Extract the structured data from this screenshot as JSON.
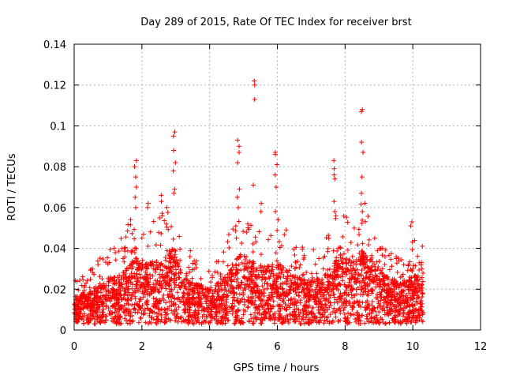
{
  "chart_data": {
    "type": "scatter",
    "title": "Day 289 of 2015, Rate Of TEC Index for receiver brst",
    "xlabel": "GPS time / hours",
    "ylabel": "ROTI / TECUs",
    "xlim": [
      0,
      12
    ],
    "ylim": [
      0,
      0.14
    ],
    "xticks": [
      0,
      2,
      4,
      6,
      8,
      10,
      12
    ],
    "xtick_labels": [
      "0",
      "2",
      "4",
      "6",
      "8",
      "10",
      "12"
    ],
    "yticks": [
      0,
      0.02,
      0.04,
      0.06,
      0.08,
      0.1,
      0.12,
      0.14
    ],
    "ytick_labels": [
      "0",
      "0.02",
      "0.04",
      "0.06",
      "0.08",
      "0.1",
      "0.12",
      "0.14"
    ],
    "grid": true,
    "marker": "plus",
    "color": "#ff0000",
    "data_x_range": [
      0,
      10.3
    ],
    "series": [
      {
        "name": "ROTI",
        "envelope": {
          "x": [
            0.0,
            0.5,
            1.0,
            1.5,
            1.8,
            2.0,
            2.5,
            2.9,
            3.2,
            3.6,
            4.0,
            4.5,
            4.9,
            5.3,
            5.6,
            6.0,
            6.5,
            7.0,
            7.4,
            7.8,
            8.2,
            8.5,
            8.8,
            9.2,
            9.6,
            10.0,
            10.3
          ],
          "typical": [
            0.012,
            0.015,
            0.018,
            0.022,
            0.028,
            0.025,
            0.025,
            0.03,
            0.02,
            0.017,
            0.016,
            0.02,
            0.028,
            0.025,
            0.023,
            0.025,
            0.02,
            0.018,
            0.02,
            0.028,
            0.025,
            0.03,
            0.025,
            0.02,
            0.017,
            0.02,
            0.02
          ],
          "max": [
            0.025,
            0.03,
            0.04,
            0.05,
            0.083,
            0.062,
            0.066,
            0.097,
            0.05,
            0.042,
            0.04,
            0.05,
            0.093,
            0.122,
            0.062,
            0.087,
            0.05,
            0.045,
            0.05,
            0.083,
            0.06,
            0.108,
            0.05,
            0.04,
            0.035,
            0.053,
            0.044
          ]
        },
        "peaks": [
          {
            "x": 1.8,
            "values": [
              0.083,
              0.08,
              0.075,
              0.07,
              0.065,
              0.06
            ]
          },
          {
            "x": 2.2,
            "values": [
              0.062,
              0.06
            ]
          },
          {
            "x": 2.6,
            "values": [
              0.066,
              0.063,
              0.056
            ]
          },
          {
            "x": 2.95,
            "values": [
              0.097,
              0.095,
              0.088,
              0.082,
              0.078,
              0.069,
              0.067
            ]
          },
          {
            "x": 4.85,
            "values": [
              0.093,
              0.09,
              0.087,
              0.082,
              0.069,
              0.065,
              0.06
            ]
          },
          {
            "x": 5.3,
            "values": [
              0.122,
              0.12,
              0.113,
              0.071
            ]
          },
          {
            "x": 5.55,
            "values": [
              0.062,
              0.058
            ]
          },
          {
            "x": 5.95,
            "values": [
              0.087,
              0.086,
              0.081,
              0.076,
              0.07,
              0.058
            ]
          },
          {
            "x": 7.7,
            "values": [
              0.083,
              0.079,
              0.076,
              0.074,
              0.063,
              0.058,
              0.056
            ]
          },
          {
            "x": 8.5,
            "values": [
              0.108,
              0.107,
              0.092,
              0.087,
              0.075,
              0.067,
              0.058
            ]
          },
          {
            "x": 9.95,
            "values": [
              0.053,
              0.051
            ]
          }
        ]
      }
    ]
  }
}
